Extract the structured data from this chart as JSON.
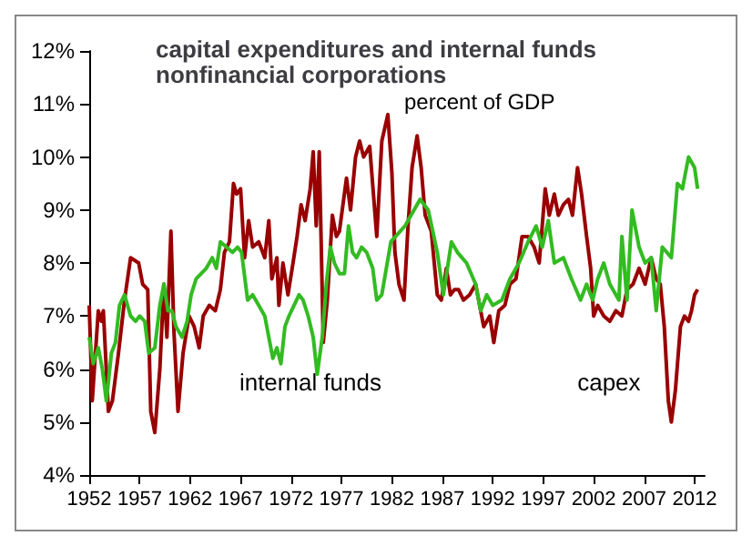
{
  "chart_data": {
    "type": "line",
    "title": "capital expenditures and internal funds\nnonfinancial corporations",
    "subtitle": "percent of GDP",
    "xlim": [
      1952,
      2013
    ],
    "xticks": [
      1952,
      1957,
      1962,
      1967,
      1972,
      1977,
      1982,
      1987,
      1992,
      1997,
      2002,
      2007,
      2012
    ],
    "ylim": [
      4,
      12
    ],
    "yticks": [
      {
        "value": 4,
        "label": "4%"
      },
      {
        "value": 5,
        "label": "5%"
      },
      {
        "value": 6,
        "label": "6%"
      },
      {
        "value": 7,
        "label": "7%"
      },
      {
        "value": 8,
        "label": "8%"
      },
      {
        "value": 9,
        "label": "9%"
      },
      {
        "value": 10,
        "label": "10%"
      },
      {
        "value": 11,
        "label": "11%"
      },
      {
        "value": 12,
        "label": "12%"
      }
    ],
    "grid": false,
    "legend": false,
    "marker": "none",
    "line_style": "solid",
    "series": [
      {
        "name": "capex",
        "color": "#990000",
        "x": [
          1952.0,
          1952.3,
          1952.9,
          1953.2,
          1953.4,
          1953.9,
          1954.3,
          1954.9,
          1955.5,
          1956.1,
          1956.9,
          1957.3,
          1957.8,
          1958.1,
          1958.5,
          1959.0,
          1959.4,
          1959.7,
          1960.1,
          1960.4,
          1960.8,
          1961.3,
          1961.9,
          1962.4,
          1962.9,
          1963.3,
          1963.9,
          1964.5,
          1965.0,
          1965.4,
          1965.9,
          1966.3,
          1966.6,
          1967.0,
          1967.4,
          1967.8,
          1968.2,
          1968.8,
          1969.4,
          1969.8,
          1970.1,
          1970.6,
          1970.8,
          1971.2,
          1971.7,
          1972.2,
          1972.6,
          1973.0,
          1973.4,
          1973.9,
          1974.2,
          1974.5,
          1974.8,
          1975.2,
          1975.6,
          1976.1,
          1976.5,
          1976.8,
          1977.5,
          1977.9,
          1978.4,
          1978.8,
          1979.2,
          1979.8,
          1980.5,
          1981.0,
          1981.6,
          1982.0,
          1982.3,
          1982.7,
          1983.2,
          1983.6,
          1984.0,
          1984.5,
          1984.9,
          1985.3,
          1985.9,
          1986.5,
          1986.9,
          1987.4,
          1987.8,
          1988.2,
          1988.6,
          1989.1,
          1989.7,
          1990.3,
          1990.7,
          1991.1,
          1991.7,
          1992.1,
          1992.6,
          1993.2,
          1993.7,
          1994.3,
          1994.9,
          1995.5,
          1996.1,
          1996.6,
          1997.2,
          1997.6,
          1998.1,
          1998.5,
          1999.0,
          1999.5,
          1999.9,
          2000.4,
          2000.8,
          2001.3,
          2001.7,
          2002.0,
          2002.4,
          2003.0,
          2003.6,
          2004.2,
          2004.8,
          2005.3,
          2005.9,
          2006.5,
          2007.1,
          2007.7,
          2008.2,
          2008.6,
          2009.0,
          2009.4,
          2009.7,
          2010.1,
          2010.6,
          2011.0,
          2011.4,
          2011.7,
          2012.0,
          2012.3
        ],
        "values": [
          7.2,
          5.4,
          7.1,
          6.9,
          7.1,
          5.2,
          5.4,
          6.3,
          7.3,
          8.1,
          8.0,
          7.6,
          7.5,
          5.2,
          4.8,
          6.0,
          7.6,
          6.6,
          8.6,
          6.7,
          5.2,
          6.3,
          7.0,
          6.8,
          6.4,
          7.0,
          7.2,
          7.1,
          7.5,
          8.2,
          8.4,
          9.5,
          9.3,
          9.4,
          8.1,
          8.8,
          8.3,
          8.4,
          8.1,
          8.8,
          7.7,
          8.1,
          7.2,
          8.0,
          7.4,
          8.0,
          8.5,
          9.1,
          8.8,
          9.4,
          10.1,
          8.7,
          10.1,
          6.5,
          7.3,
          8.9,
          8.5,
          8.6,
          9.6,
          9.0,
          10.0,
          10.3,
          10.0,
          10.2,
          8.5,
          10.3,
          10.8,
          9.7,
          8.2,
          7.6,
          7.3,
          8.7,
          9.8,
          10.4,
          9.8,
          8.9,
          8.6,
          7.4,
          7.3,
          7.9,
          7.4,
          7.5,
          7.5,
          7.3,
          7.4,
          7.6,
          7.2,
          6.8,
          7.0,
          6.5,
          7.1,
          7.2,
          7.6,
          7.7,
          8.5,
          8.5,
          8.3,
          8.0,
          9.4,
          8.9,
          9.3,
          8.9,
          9.1,
          9.2,
          8.9,
          9.8,
          9.3,
          8.5,
          7.9,
          7.0,
          7.2,
          7.0,
          6.9,
          7.1,
          7.0,
          7.5,
          7.6,
          7.9,
          7.6,
          8.1,
          7.7,
          7.6,
          6.8,
          5.4,
          5.0,
          5.6,
          6.8,
          7.0,
          6.9,
          7.1,
          7.4,
          7.5
        ]
      },
      {
        "name": "internal funds",
        "color": "#33bb22",
        "x": [
          1952.0,
          1952.4,
          1952.9,
          1953.3,
          1953.7,
          1954.2,
          1954.6,
          1955.0,
          1955.5,
          1956.1,
          1956.6,
          1957.0,
          1957.5,
          1957.9,
          1958.5,
          1959.0,
          1959.4,
          1959.8,
          1960.2,
          1960.6,
          1961.2,
          1961.7,
          1962.1,
          1962.6,
          1963.1,
          1963.6,
          1964.2,
          1964.6,
          1965.0,
          1965.6,
          1966.2,
          1966.7,
          1967.1,
          1967.7,
          1968.2,
          1968.8,
          1969.4,
          1969.9,
          1970.2,
          1970.6,
          1971.0,
          1971.4,
          1971.8,
          1972.3,
          1972.8,
          1973.2,
          1973.7,
          1974.2,
          1974.6,
          1975.1,
          1975.5,
          1975.9,
          1976.3,
          1976.8,
          1977.3,
          1977.7,
          1978.1,
          1978.5,
          1979.0,
          1979.5,
          1980.1,
          1980.5,
          1981.0,
          1981.9,
          1983.3,
          1984.8,
          1985.6,
          1986.5,
          1987.1,
          1987.9,
          1988.5,
          1989.4,
          1990.3,
          1990.8,
          1991.4,
          1992.0,
          1992.9,
          1993.7,
          1994.6,
          1995.5,
          1996.3,
          1996.9,
          1997.5,
          1998.1,
          1999.0,
          1999.8,
          2000.7,
          2001.3,
          2001.9,
          2002.4,
          2003.0,
          2003.6,
          2004.5,
          2004.8,
          2005.3,
          2005.8,
          2006.5,
          2007.1,
          2007.7,
          2008.2,
          2008.8,
          2009.7,
          2010.3,
          2010.8,
          2011.4,
          2012.0,
          2012.3
        ],
        "values": [
          6.6,
          6.1,
          6.4,
          6.0,
          5.4,
          6.3,
          6.5,
          7.2,
          7.4,
          7.0,
          6.9,
          7.0,
          6.9,
          6.3,
          6.4,
          7.2,
          7.6,
          7.1,
          7.1,
          6.8,
          6.6,
          6.9,
          7.4,
          7.7,
          7.8,
          7.9,
          8.1,
          7.9,
          8.4,
          8.3,
          8.2,
          8.3,
          8.2,
          7.3,
          7.4,
          7.2,
          7.0,
          6.5,
          6.2,
          6.4,
          6.1,
          6.8,
          7.0,
          7.2,
          7.4,
          7.3,
          7.0,
          6.6,
          5.9,
          6.6,
          7.6,
          8.3,
          8.0,
          7.8,
          7.8,
          8.7,
          8.2,
          8.1,
          8.3,
          8.2,
          7.9,
          7.3,
          7.4,
          8.4,
          8.7,
          9.2,
          9.0,
          8.2,
          7.4,
          8.4,
          8.2,
          8.0,
          7.6,
          7.1,
          7.4,
          7.2,
          7.3,
          7.7,
          8.0,
          8.4,
          8.7,
          8.3,
          8.8,
          8.0,
          8.1,
          7.7,
          7.3,
          7.6,
          7.3,
          7.7,
          8.0,
          7.6,
          7.3,
          8.5,
          7.3,
          9.0,
          8.3,
          8.0,
          8.1,
          7.1,
          8.3,
          8.1,
          9.5,
          9.4,
          10.0,
          9.8,
          9.4
        ]
      }
    ]
  }
}
